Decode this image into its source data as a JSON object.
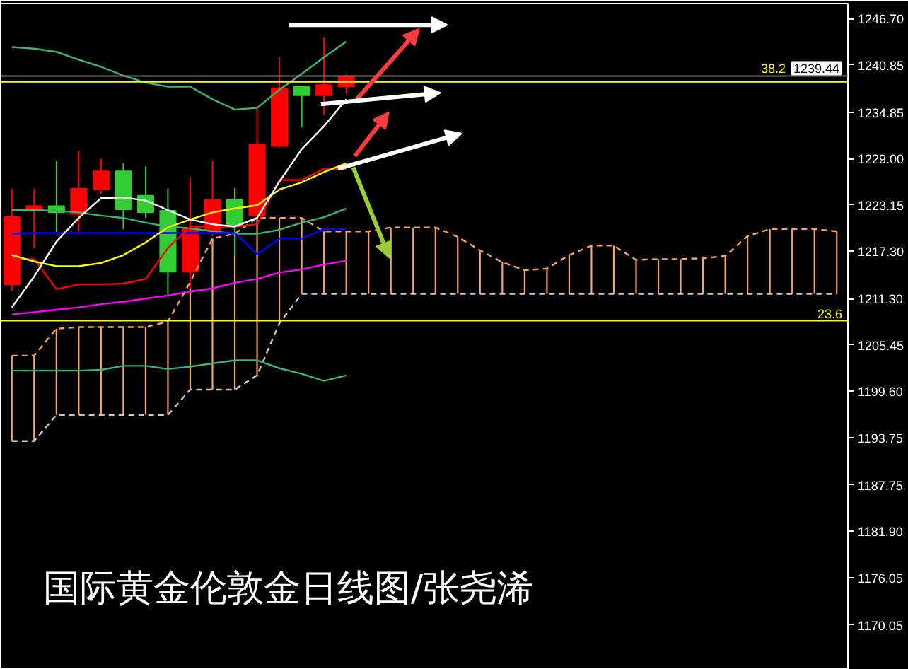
{
  "chart_data": {
    "type": "candlestick",
    "title": "国际黄金伦敦金日线图/张尧浠",
    "categories": [
      null,
      null,
      null,
      null,
      null,
      null,
      null,
      null,
      null,
      null,
      null,
      null,
      null,
      null,
      null,
      null,
      null,
      null,
      null,
      null,
      null,
      null,
      null,
      null,
      null,
      null,
      null,
      null,
      null,
      null,
      null,
      null,
      null,
      null,
      null,
      null,
      null,
      null
    ],
    "ohlc": [
      [
        1213.1,
        1225.2,
        1212.3,
        1221.6
      ],
      [
        1222.5,
        1225.2,
        1217.7,
        1223.0
      ],
      [
        1223.0,
        1228.7,
        1219.7,
        1222.2
      ],
      [
        1222.0,
        1230.0,
        1219.8,
        1225.2
      ],
      [
        1225.1,
        1229.0,
        1224.5,
        1227.4
      ],
      [
        1227.4,
        1228.4,
        1220.1,
        1222.6
      ],
      [
        1224.3,
        1228.0,
        1221.5,
        1222.2
      ],
      [
        1222.4,
        1225.2,
        1211.8,
        1214.7
      ],
      [
        1214.7,
        1226.6,
        1212.6,
        1220.2
      ],
      [
        1220.0,
        1228.7,
        1219.2,
        1223.8
      ],
      [
        1223.8,
        1225.3,
        1216.8,
        1220.6
      ],
      [
        1221.8,
        1235.3,
        1221.8,
        1230.8
      ],
      [
        1230.6,
        1241.8,
        1230.4,
        1237.9
      ],
      [
        1238.1,
        1238.1,
        1233.0,
        1237.0
      ],
      [
        1237.0,
        1244.3,
        1234.5,
        1238.3
      ],
      [
        1238.1,
        1239.7,
        1237.2,
        1239.4
      ],
      null,
      null,
      null,
      null,
      null,
      null,
      null,
      null,
      null,
      null,
      null,
      null,
      null,
      null,
      null,
      null,
      null,
      null,
      null,
      null,
      null,
      null
    ],
    "colors": [
      "#ff0000",
      "#ff0000",
      "#32cd32",
      "#ff0000",
      "#ff0000",
      "#32cd32",
      "#32cd32",
      "#32cd32",
      "#ff0000",
      "#ff0000",
      "#32cd32",
      "#ff0000",
      "#ff0000",
      "#32cd32",
      "#ff0000",
      "#ff0000",
      null,
      null,
      null,
      null,
      null,
      null,
      null,
      null,
      null,
      null,
      null,
      null,
      null,
      null,
      null,
      null,
      null,
      null,
      null,
      null,
      null,
      null
    ],
    "series": [
      {
        "type": "line",
        "color": "#f4a460",
        "line_style": "dashed",
        "values": [
          1204.1,
          1204.1,
          1207.5,
          1207.7,
          1207.7,
          1207.7,
          1207.7,
          1208.4,
          1213.4,
          1218.9,
          1219.5,
          1221.5,
          1221.5,
          1221.5,
          1219.8,
          1219.8,
          1219.8,
          1220.3,
          1220.3,
          1220.3,
          1219.1,
          1217.4,
          1215.9,
          1214.9,
          1215.1,
          1216.8,
          1218.0,
          1218.0,
          1216.2,
          1216.3,
          1216.3,
          1216.4,
          1216.7,
          1219.2,
          1220.1,
          1220.1,
          1220.1,
          1219.8
        ]
      },
      {
        "type": "line",
        "color": "#d8bfd8",
        "line_style": "dashed",
        "values": [
          1193.3,
          1193.3,
          1196.6,
          1196.6,
          1196.6,
          1196.6,
          1196.6,
          1196.6,
          1199.8,
          1199.8,
          1199.8,
          1201.6,
          1208.2,
          1211.9,
          1211.9,
          1211.9,
          1211.9,
          1211.9,
          1211.9,
          1211.9,
          1211.9,
          1211.9,
          1211.9,
          1211.9,
          1211.9,
          1211.9,
          1211.9,
          1211.9,
          1211.9,
          1211.9,
          1211.9,
          1211.9,
          1211.9,
          1211.9,
          1211.9,
          1211.9,
          1211.9,
          1211.9
        ]
      },
      {
        "type": "line",
        "color": "#3cb371",
        "values": [
          1243.1,
          1242.9,
          1242.5,
          1241.5,
          1240.6,
          1239.5,
          1238.6,
          1238.1,
          1238.1,
          1236.5,
          1235.2,
          1235.4,
          1237.7,
          1239.7,
          1241.8,
          1243.8,
          null,
          null,
          null,
          null,
          null,
          null,
          null,
          null,
          null,
          null,
          null,
          null,
          null,
          null,
          null,
          null,
          null,
          null,
          null,
          null,
          null,
          null
        ]
      },
      {
        "type": "line",
        "color": "#3cb371",
        "values": [
          1222.5,
          1222.5,
          1222.4,
          1222.2,
          1221.8,
          1221.5,
          1220.9,
          1220.4,
          1220.2,
          1219.8,
          1219.5,
          1219.5,
          1220.0,
          1220.9,
          1221.6,
          1222.7,
          null,
          null,
          null,
          null,
          null,
          null,
          null,
          null,
          null,
          null,
          null,
          null,
          null,
          null,
          null,
          null,
          null,
          null,
          null,
          null,
          null,
          null
        ]
      },
      {
        "type": "line",
        "color": "#3cb371",
        "values": [
          1202.2,
          1202.2,
          1202.2,
          1202.2,
          1202.3,
          1202.8,
          1202.8,
          1202.4,
          1202.7,
          1203.1,
          1203.5,
          1203.5,
          1202.5,
          1201.8,
          1200.9,
          1201.6,
          null,
          null,
          null,
          null,
          null,
          null,
          null,
          null,
          null,
          null,
          null,
          null,
          null,
          null,
          null,
          null,
          null,
          null,
          null,
          null,
          null,
          null
        ]
      },
      {
        "type": "line",
        "color": "#ff00ff",
        "values": [
          1209.3,
          1209.6,
          1209.9,
          1210.2,
          1210.6,
          1210.9,
          1211.3,
          1211.7,
          1212.2,
          1212.6,
          1213.3,
          1213.8,
          1214.6,
          1215.0,
          1215.6,
          1216.1,
          null,
          null,
          null,
          null,
          null,
          null,
          null,
          null,
          null,
          null,
          null,
          null,
          null,
          null,
          null,
          null,
          null,
          null,
          null,
          null,
          null,
          null
        ]
      },
      {
        "type": "line",
        "color": "#0000ff",
        "values": [
          1219.5,
          1219.6,
          1219.6,
          1219.6,
          1219.6,
          1219.6,
          1219.6,
          1219.6,
          1219.6,
          1219.6,
          1219.6,
          1216.9,
          1218.9,
          1218.9,
          1220.1,
          1220.1,
          null,
          null,
          null,
          null,
          null,
          null,
          null,
          null,
          null,
          null,
          null,
          null,
          null,
          null,
          null,
          null,
          null,
          null,
          null,
          null,
          null,
          null
        ]
      },
      {
        "type": "line",
        "color": "#ff0000",
        "values": [
          1216.3,
          1216.3,
          1212.5,
          1213.1,
          1213.1,
          1213.2,
          1213.8,
          1217.7,
          1220.4,
          1220.4,
          1220.4,
          1220.7,
          1226.3,
          1226.3,
          1227.7,
          1227.7,
          null,
          null,
          null,
          null,
          null,
          null,
          null,
          null,
          null,
          null,
          null,
          null,
          null,
          null,
          null,
          null,
          null,
          null,
          null,
          null,
          null,
          null
        ]
      },
      {
        "type": "line",
        "color": "#ffff00",
        "values": [
          1216.8,
          1216.0,
          1215.4,
          1215.4,
          1215.8,
          1216.8,
          1218.4,
          1220.3,
          1221.3,
          1222.2,
          1222.7,
          1223.1,
          1225.1,
          1226.0,
          1227.3,
          1228.4,
          null,
          null,
          null,
          null,
          null,
          null,
          null,
          null,
          null,
          null,
          null,
          null,
          null,
          null,
          null,
          null,
          null,
          null,
          null,
          null,
          null,
          null
        ]
      },
      {
        "type": "line",
        "color": "#ffffff",
        "values": [
          1210.2,
          1214.1,
          1218.5,
          1221.5,
          1224.0,
          1224.1,
          1223.7,
          1222.5,
          1221.3,
          1220.7,
          1220.4,
          1221.5,
          1226.1,
          1230.2,
          1233.1,
          1236.5,
          null,
          null,
          null,
          null,
          null,
          null,
          null,
          null,
          null,
          null,
          null,
          null,
          null,
          null,
          null,
          null,
          null,
          null,
          null,
          null,
          null,
          null
        ]
      },
      {
        "type": "bar",
        "color": "#f4a460",
        "base": [
          1193.3,
          1193.3,
          1196.6,
          1196.6,
          1196.6,
          1196.6,
          1196.6,
          1196.6,
          1199.8,
          1199.8,
          1199.8,
          1201.6,
          1208.2,
          1211.9,
          1211.9,
          1211.9,
          1211.9,
          1211.9,
          1211.9,
          1211.9,
          1211.9,
          1211.9,
          1211.9,
          1211.9,
          1211.9,
          1211.9,
          1211.9,
          1211.9,
          1211.9,
          1211.9,
          1211.9,
          1211.9,
          1211.9,
          1211.9,
          1211.9,
          1211.9,
          1211.9,
          1211.9
        ],
        "values": [
          10.8,
          10.8,
          10.9,
          11.1,
          11.1,
          11.1,
          11.1,
          11.8,
          13.6,
          19.1,
          19.7,
          19.9,
          13.3,
          9.6,
          7.9,
          7.9,
          7.9,
          8.4,
          8.4,
          8.4,
          7.2,
          5.5,
          4.0,
          3.0,
          3.2,
          4.9,
          6.1,
          6.1,
          4.3,
          4.4,
          4.4,
          4.5,
          4.8,
          7.3,
          8.2,
          8.2,
          8.2,
          7.9
        ]
      }
    ],
    "ylim": [
      1164.4,
      1248.6
    ],
    "yticks": [
      {
        "value": 1246.7,
        "label": "1246.70"
      },
      {
        "value": 1240.85,
        "label": "1240.85"
      },
      {
        "value": 1234.85,
        "label": "1234.85"
      },
      {
        "value": 1229.0,
        "label": "1229.00"
      },
      {
        "value": 1223.15,
        "label": "1223.15"
      },
      {
        "value": 1217.3,
        "label": "1217.30"
      },
      {
        "value": 1211.3,
        "label": "1211.30"
      },
      {
        "value": 1205.45,
        "label": "1205.45"
      },
      {
        "value": 1199.6,
        "label": "1199.60"
      },
      {
        "value": 1193.75,
        "label": "1193.75"
      },
      {
        "value": 1187.75,
        "label": "1187.75"
      },
      {
        "value": 1181.9,
        "label": "1181.90"
      },
      {
        "value": 1176.05,
        "label": "1176.05"
      },
      {
        "value": 1170.05,
        "label": "1170.05"
      }
    ],
    "tick_labels": "y",
    "ref_lines": [
      {
        "axis": "y",
        "value": 1239.44,
        "label": "1239.44",
        "color": "#808080"
      },
      {
        "axis": "y",
        "value": 1238.7,
        "color": "#ffff00"
      },
      {
        "axis": "y",
        "value": 1208.5,
        "color": "#ffff00"
      }
    ],
    "annotations": [
      {
        "text": "38.2",
        "y": 1238.7
      },
      {
        "text": "23.6",
        "y": 1208.5
      }
    ]
  }
}
